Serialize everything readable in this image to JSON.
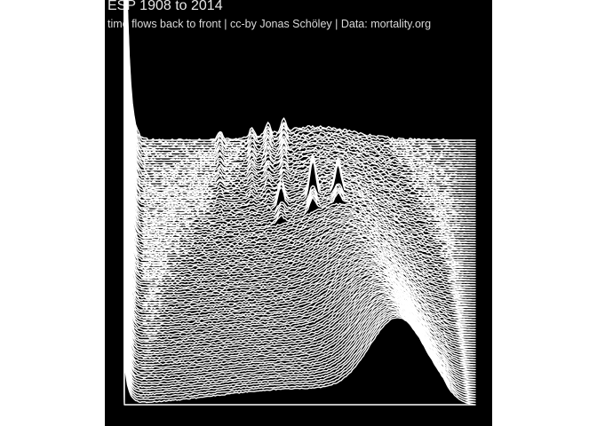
{
  "chart": {
    "title": "ESP 1908 to 2014",
    "subtitle": "time flows back to front | cc-by Jonas Schöley | Data: mortality.org"
  },
  "chart_data": {
    "type": "ridgeline",
    "title": "ESP 1908 to 2014",
    "subtitle": "time flows back to front | cc-by Jonas Schöley | Data: mortality.org",
    "x_range": [
      0,
      110
    ],
    "year_range": [
      1908,
      2014
    ],
    "n_series": 107,
    "order": "earliest year at back (top), latest year at front (bottom)",
    "background": "#000000",
    "line_color": "#ffffff",
    "axes_shown": false,
    "grid": false,
    "legend": "none",
    "notes": "Spanish age-at-death distributions: infant spike at age 0, spikes at war-era ridges in back years (Civil War 1936-1939), adult peak moving to older ages toward front years."
  }
}
